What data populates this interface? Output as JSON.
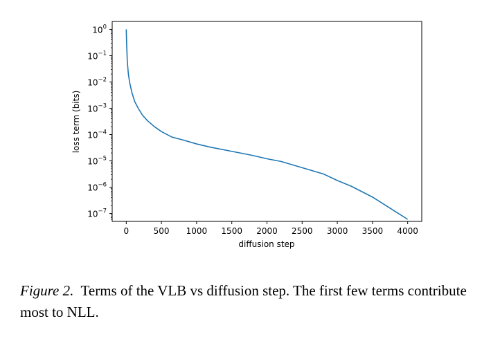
{
  "chart_data": {
    "type": "line",
    "xlabel": "diffusion step",
    "ylabel": "loss term (bits)",
    "yscale": "log",
    "xlim": [
      -200,
      4200
    ],
    "ylim": [
      5e-08,
      2
    ],
    "x_ticks": [
      0,
      500,
      1000,
      1500,
      2000,
      2500,
      3000,
      3500,
      4000
    ],
    "y_ticks": [
      {
        "value": 1,
        "label_base": "10",
        "label_exp": "0"
      },
      {
        "value": 0.1,
        "label_base": "10",
        "label_exp": "−1"
      },
      {
        "value": 0.01,
        "label_base": "10",
        "label_exp": "−2"
      },
      {
        "value": 0.001,
        "label_base": "10",
        "label_exp": "−3"
      },
      {
        "value": 0.0001,
        "label_base": "10",
        "label_exp": "−4"
      },
      {
        "value": 1e-05,
        "label_base": "10",
        "label_exp": "−5"
      },
      {
        "value": 1e-06,
        "label_base": "10",
        "label_exp": "−6"
      },
      {
        "value": 1e-07,
        "label_base": "10",
        "label_exp": "−7"
      }
    ],
    "grid": false,
    "series": [
      {
        "color": "#1f77b4",
        "x": [
          0,
          5,
          15,
          30,
          50,
          80,
          120,
          170,
          230,
          300,
          400,
          500,
          650,
          800,
          1000,
          1200,
          1500,
          1800,
          2000,
          2200,
          2500,
          2800,
          3000,
          3200,
          3500,
          3800,
          4000
        ],
        "y": [
          1.0,
          0.3,
          0.06,
          0.02,
          0.009,
          0.004,
          0.0018,
          0.001,
          0.00055,
          0.00034,
          0.0002,
          0.00013,
          8e-05,
          6.3e-05,
          4.4e-05,
          3.3e-05,
          2.3e-05,
          1.6e-05,
          1.2e-05,
          9.5e-06,
          5.5e-06,
          3.2e-06,
          1.8e-06,
          1.08e-06,
          4.2e-07,
          1.3e-07,
          6e-08
        ]
      }
    ]
  },
  "caption": {
    "figure_label": "Figure 2.",
    "text": "Terms of the VLB vs diffusion step. The first few terms contribute most to NLL."
  }
}
